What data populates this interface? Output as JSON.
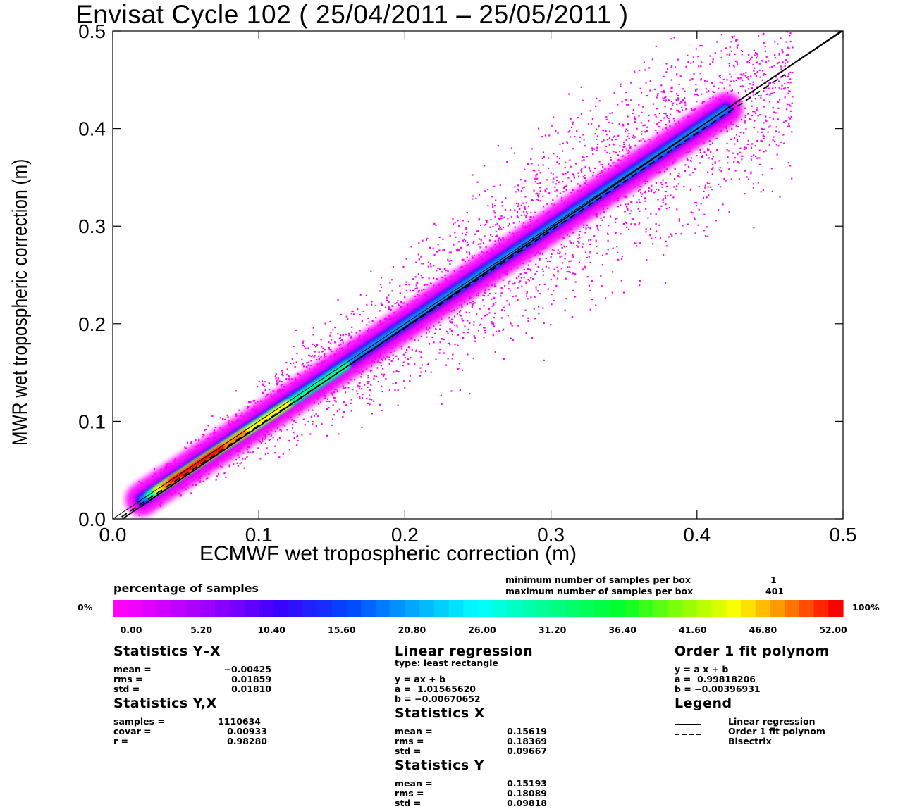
{
  "chart_data": {
    "type": "heatmap",
    "title": "Envisat Cycle 102 ( 25/04/2011 – 25/05/2011 )",
    "xlabel": "ECMWF wet tropospheric correction (m)",
    "ylabel": "MWR wet tropospheric correction (m)",
    "xlim": [
      0.0,
      0.5
    ],
    "ylim": [
      0.0,
      0.5
    ],
    "xticks": [
      "0.0",
      "0.1",
      "0.2",
      "0.3",
      "0.4",
      "0.5"
    ],
    "yticks": [
      "0.0",
      "0.1",
      "0.2",
      "0.3",
      "0.4",
      "0.5"
    ],
    "lines": [
      {
        "name": "Linear regression",
        "a": 1.0156562,
        "b": -0.00670652,
        "style": "solid"
      },
      {
        "name": "Order 1 fit polynom",
        "a": 0.99818206,
        "b": -0.00396931,
        "style": "dashed"
      },
      {
        "name": "Bisectrix",
        "a": 1,
        "b": 0,
        "style": "thin"
      }
    ],
    "density_ridge": {
      "x_start": 0.02,
      "x_end": 0.42,
      "peak_x": 0.05
    }
  },
  "colorbar": {
    "title": "percentage of samples",
    "left_label": "0%",
    "right_label": "100%",
    "ticks": [
      "0.00",
      "5.20",
      "10.40",
      "15.60",
      "20.80",
      "26.00",
      "31.20",
      "36.40",
      "41.60",
      "46.80",
      "52.00"
    ],
    "min_label": "minimum number of samples per box",
    "min_value": "1",
    "max_label": "maximum number of samples per box",
    "max_value": "401"
  },
  "stats_yx_diff": {
    "title": "Statistics Y–X",
    "rows": [
      {
        "label": "mean =",
        "value": "−0.00425"
      },
      {
        "label": "rms =",
        "value": "0.01859"
      },
      {
        "label": "std =",
        "value": "0.01810"
      }
    ]
  },
  "stats_yx": {
    "title": "Statistics Y,X",
    "rows": [
      {
        "label": "samples =",
        "value": "1110634"
      },
      {
        "label": "covar =",
        "value": "0.00933"
      },
      {
        "label": "r =",
        "value": "0.98280"
      }
    ]
  },
  "linear_regression": {
    "title": "Linear regression",
    "subtitle": "type: least rectangle",
    "equation": "y = ax + b",
    "a_line": "a =  1.01565620",
    "b_line": "b = −0.00670652"
  },
  "stats_x": {
    "title": "Statistics X",
    "rows": [
      {
        "label": "mean =",
        "value": "0.15619"
      },
      {
        "label": "rms =",
        "value": "0.18369"
      },
      {
        "label": "std =",
        "value": "0.09667"
      }
    ]
  },
  "stats_y": {
    "title": "Statistics Y",
    "rows": [
      {
        "label": "mean =",
        "value": "0.15193"
      },
      {
        "label": "rms =",
        "value": "0.18089"
      },
      {
        "label": "std =",
        "value": "0.09818"
      }
    ]
  },
  "poly_fit": {
    "title": "Order 1 fit polynom",
    "equation": "y = a x + b",
    "a_line": "a =  0.99818206",
    "b_line": "b = −0.00396931"
  },
  "legend": {
    "title": "Legend",
    "items": [
      "Linear regression",
      "Order 1 fit polynom",
      "Bisectrix"
    ]
  },
  "colors": {
    "scale": [
      "#ff00ff",
      "#c800ff",
      "#8000ff",
      "#2000ff",
      "#0040ff",
      "#00a0ff",
      "#00ffff",
      "#00ffa0",
      "#00ff40",
      "#40ff00",
      "#c0ff00",
      "#ffff00",
      "#ffc000",
      "#ff8000",
      "#ff4000",
      "#ff0000"
    ]
  }
}
